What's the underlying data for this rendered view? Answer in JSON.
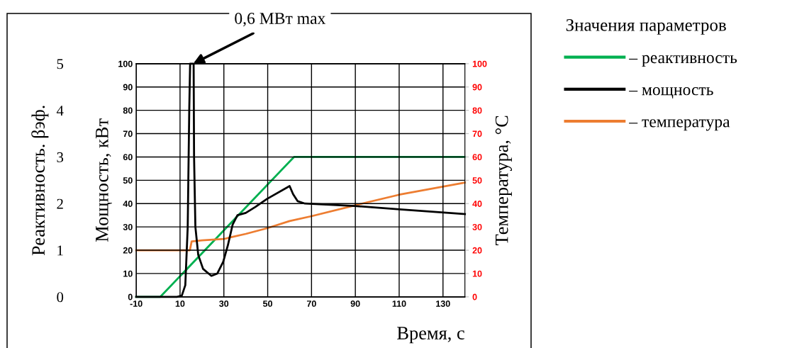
{
  "chart_data": {
    "type": "line",
    "xlabel": "Время, с",
    "ylabel": "Мощность, кВт",
    "y2label": "Температура, °C",
    "y3label": "Реактивность. βэф.",
    "legend_title": "Значения параметров",
    "annotations": [
      {
        "text": "0,6 МВт max",
        "x": 16,
        "y": 100
      }
    ],
    "xlim": [
      -10,
      140
    ],
    "xticks": [
      -10,
      10,
      30,
      50,
      70,
      90,
      110,
      130
    ],
    "ylim": [
      0,
      100
    ],
    "yticks": [
      0,
      10,
      20,
      30,
      40,
      50,
      60,
      70,
      80,
      90,
      100
    ],
    "y2lim": [
      0,
      100
    ],
    "y2ticks": [
      0,
      10,
      20,
      30,
      40,
      50,
      60,
      70,
      80,
      90,
      100
    ],
    "y3lim": [
      0,
      5
    ],
    "y3ticks": [
      0,
      1,
      2,
      3,
      4,
      5
    ],
    "grid": true,
    "legend": "right",
    "marker": "none",
    "line_style": "solid",
    "series": [
      {
        "name": "– реактивность",
        "color": "#00b050",
        "axis": "y3",
        "x": [
          -10,
          1,
          62,
          140
        ],
        "values": [
          0,
          0,
          3,
          3
        ]
      },
      {
        "name": "– мощность",
        "color": "#000000",
        "axis": "y",
        "x": [
          -10,
          8.6,
          10.8,
          12.4,
          13.5,
          14.2,
          14.6,
          16.2,
          16.4,
          17,
          18.3,
          20.5,
          24.3,
          27,
          29.7,
          31.8,
          34,
          36.2,
          40,
          44.3,
          49.7,
          60,
          61.6,
          63.7,
          67,
          89.7,
          110.2,
          140
        ],
        "values": [
          0,
          0,
          0.5,
          5,
          30,
          80,
          100,
          100,
          60,
          30,
          18,
          12,
          9,
          10,
          15,
          22,
          31,
          35,
          36,
          38.5,
          42,
          47.5,
          44,
          41,
          40,
          39,
          37.5,
          35.5
        ]
      },
      {
        "name": "– температура",
        "color": "#ed7d31",
        "axis": "y2",
        "x": [
          -10,
          14.5,
          15.3,
          20,
          30,
          33,
          40,
          50,
          60,
          70,
          90,
          110,
          140
        ],
        "values": [
          20,
          20,
          23.8,
          24.2,
          24.8,
          25.5,
          27,
          29.5,
          32.5,
          34.6,
          39.3,
          43.8,
          49
        ]
      }
    ]
  }
}
